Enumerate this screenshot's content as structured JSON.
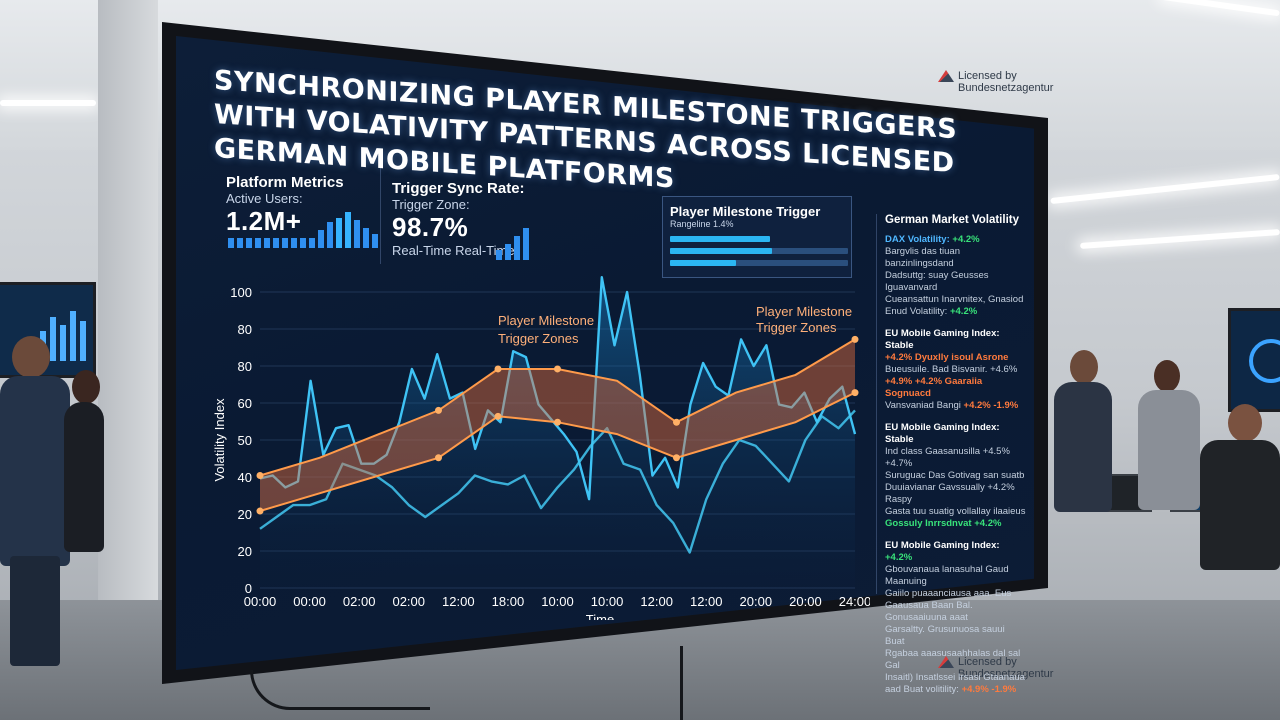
{
  "screen": {
    "title": "SYNCHRONIZING PLAYER MILESTONE TRIGGERS WITH VOLATIVITY PATTERNS ACROSS LICENSED GERMAN MOBILE PLATFORMS",
    "licensed_top": [
      "Licensed by",
      "Bundesnetzagentur"
    ],
    "licensed_bottom": [
      "Licensed by",
      "Bundesnetzagentur"
    ]
  },
  "metrics": {
    "platform": {
      "title": "Platform Metrics",
      "label": "Active Users:",
      "value": "1.2M+"
    },
    "trigger": {
      "title": "Trigger Sync Rate:",
      "label": "Trigger Zone:",
      "value": "98.7%",
      "footer": "Real-Time Real-Time:"
    },
    "milestone": {
      "title": "Player Milestone Trigger",
      "sub": "Rangeline 1.4%"
    }
  },
  "side_panel": {
    "title": "German Market Volatility",
    "blocks": [
      {
        "head": "DAX Volatility:",
        "head_delta": "+4.2%",
        "lines": [
          "Bargvlis das tiuan banzinlingsdand",
          "Dadsuttg: suay Geusses Iguavanvard",
          "Cueansattun Inarvnitex, Gnasiod"
        ],
        "tail": "Enud Volatility:",
        "tail_delta": "+4.2%"
      },
      {
        "head": "EU Mobile Gaming Index:",
        "head_delta": "Stable",
        "lines": [
          "+4.2% Dyuxlly isoul Asrone",
          "Bueusuile. Bad Bisvanir. +4.6%",
          "+4.9% +4.2% Gaaraiia Sognuacd"
        ],
        "tail": "Vansvaniad Bangi",
        "tail_delta": "+4.2% -1.9%"
      },
      {
        "head": "EU Mobile Gaming Index:",
        "head_delta": "Stable",
        "lines": [
          "Ind class Gaasanusilla +4.5% +4.7%",
          "Suruguac Das Gotivag san suatb",
          "Duuiavianar Gavssually +4.2% Raspy",
          "Gasta tuu suatig vollallay ilaaieus",
          "Gossuly Inrrsdnvat +4.2%"
        ],
        "tail": "",
        "tail_delta": ""
      },
      {
        "head": "EU Mobile Gaming Index:",
        "head_delta": "+4.2%",
        "lines": [
          "Gbouvanaua lanasuhal Gaud Maanuing",
          "Gaiilo puaaanciausa aaa. Eus",
          "Gaausaua Baan Bal. Gonusaaiuuna aaat",
          "Garsaltty. Grusunuosa sauui Buat",
          "Rgabaa aaasusaahhalas dal sal Gal",
          "Insaitl) Insatlssei Irsasi Gtaanaua"
        ],
        "tail": "aad Buat volitility:",
        "tail_delta": "+4.9% -1.9%"
      }
    ]
  },
  "chart_data": {
    "type": "line",
    "ylabel": "Volatility Index",
    "xlabel": "Time",
    "y_tick_labels": [
      "0",
      "20",
      "20",
      "40",
      "50",
      "60",
      "80",
      "80",
      "100"
    ],
    "x_tick_labels": [
      "00:00",
      "00:00",
      "02:00",
      "02:00",
      "12:00",
      "18:00",
      "10:00",
      "10:00",
      "12:00",
      "12:00",
      "20:00",
      "20:00",
      "24:00"
    ],
    "ylim": [
      0,
      100
    ],
    "grid": true,
    "annotations": [
      "Player Milestone Trigger Zones",
      "Player Milestone Trigger Zones"
    ],
    "series": [
      {
        "values": [
          37,
          38,
          34,
          36,
          70,
          45,
          54,
          55,
          42,
          42,
          45,
          56,
          74,
          64,
          79,
          64,
          66,
          47,
          60,
          56,
          80,
          78,
          62,
          57,
          52,
          46,
          30,
          105,
          82,
          100,
          72,
          38,
          44,
          34,
          62,
          76,
          68,
          65,
          84,
          75,
          82,
          62,
          61,
          66,
          56,
          64,
          68,
          52
        ]
      },
      {
        "values": [
          20,
          24,
          28,
          28,
          30,
          42,
          40,
          38,
          34,
          28,
          24,
          28,
          32,
          38,
          36,
          35,
          38,
          27,
          34,
          40,
          48,
          54,
          42,
          40,
          28,
          22,
          12,
          30,
          42,
          50,
          48,
          42,
          36,
          50,
          58,
          54,
          60
        ]
      }
    ],
    "band": {
      "upper": [
        38,
        44,
        52,
        60,
        74,
        74,
        70,
        56,
        66,
        72,
        84
      ],
      "lower": [
        26,
        32,
        38,
        44,
        58,
        56,
        52,
        44,
        50,
        56,
        66
      ]
    }
  }
}
